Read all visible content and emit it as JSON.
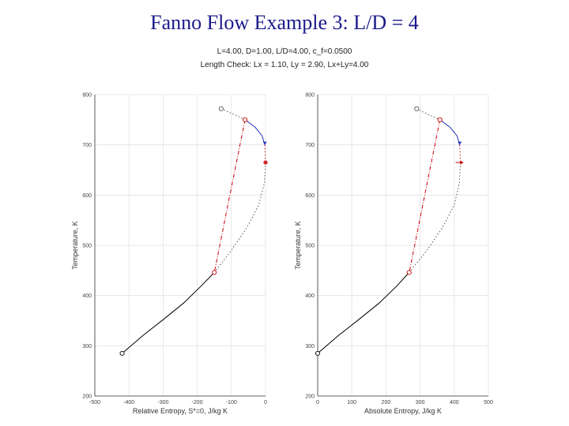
{
  "slide": {
    "title": "Fanno Flow Example 3: L/D = 4",
    "info_line1": "L=4.00, D=1.00, L/D=4.00, c_f=0.0500",
    "info_line2": "Length Check: Lx = 1.10, Ly = 2.90, Lx+Ly=4.00"
  },
  "chart_data": [
    {
      "type": "line",
      "xlabel": "Relative Entropy, S*=0, J/kg K",
      "ylabel": "Temperature, K",
      "xlim": [
        -500,
        0
      ],
      "ylim": [
        200,
        800
      ],
      "xticks": [
        "-500",
        "-400",
        "-300",
        "-200",
        "-100",
        "0"
      ],
      "yticks": [
        "200",
        "300",
        "400",
        "500",
        "600",
        "700",
        "800"
      ],
      "grid": true,
      "series": [
        {
          "style": "solid",
          "color": "#000000",
          "x": [
            -420,
            -360,
            -300,
            -240,
            -190,
            -150
          ],
          "y": [
            285,
            320,
            352,
            385,
            418,
            446
          ]
        },
        {
          "style": "dotted",
          "color": "#555555",
          "x": [
            -150,
            -100,
            -55,
            -20,
            -3,
            0
          ],
          "y": [
            446,
            490,
            535,
            580,
            625,
            665
          ]
        },
        {
          "style": "dotted",
          "color": "#555555",
          "x": [
            -130,
            -90,
            -60
          ],
          "y": [
            772,
            760,
            750
          ]
        },
        {
          "style": "dash-dot",
          "color": "#cc0000",
          "x": [
            -60,
            -105,
            -150
          ],
          "y": [
            750,
            598,
            446
          ]
        },
        {
          "style": "solid",
          "color": "#2233bb",
          "x": [
            -60,
            -30,
            -10,
            -2
          ],
          "y": [
            750,
            735,
            718,
            700
          ]
        },
        {
          "style": "dotted",
          "color": "#cc0000",
          "x": [
            -2,
            0
          ],
          "y": [
            700,
            665
          ]
        }
      ],
      "markers": [
        {
          "x": -420,
          "y": 285,
          "color": "#000000",
          "shape": "open-circle"
        },
        {
          "x": -130,
          "y": 772,
          "color": "#555555",
          "shape": "open-circle"
        },
        {
          "x": -60,
          "y": 750,
          "color": "#cc0000",
          "shape": "open-circle"
        },
        {
          "x": -150,
          "y": 446,
          "color": "#cc0000",
          "shape": "open-circle"
        },
        {
          "x": 0,
          "y": 665,
          "color": "#cc0000",
          "shape": "star"
        },
        {
          "x": -2,
          "y": 700,
          "color": "#2233bb",
          "shape": "arrow"
        }
      ]
    },
    {
      "type": "line",
      "xlabel": "Absolute Entropy, J/kg K",
      "ylabel": "Temperature, K",
      "xlim": [
        0,
        500
      ],
      "ylim": [
        200,
        800
      ],
      "xticks": [
        "0",
        "100",
        "200",
        "300",
        "400",
        "500"
      ],
      "yticks": [
        "200",
        "300",
        "400",
        "500",
        "600",
        "700",
        "800"
      ],
      "grid": true,
      "series": [
        {
          "style": "solid",
          "color": "#000000",
          "x": [
            0,
            60,
            120,
            180,
            230,
            268
          ],
          "y": [
            285,
            320,
            352,
            385,
            418,
            446
          ]
        },
        {
          "style": "dotted",
          "color": "#555555",
          "x": [
            268,
            320,
            365,
            400,
            415,
            418
          ],
          "y": [
            446,
            490,
            535,
            580,
            625,
            665
          ]
        },
        {
          "style": "dotted",
          "color": "#555555",
          "x": [
            290,
            325,
            358
          ],
          "y": [
            772,
            760,
            750
          ]
        },
        {
          "style": "dash-dot",
          "color": "#cc0000",
          "x": [
            358,
            313,
            268
          ],
          "y": [
            750,
            598,
            446
          ]
        },
        {
          "style": "solid",
          "color": "#2233bb",
          "x": [
            358,
            388,
            408,
            416
          ],
          "y": [
            750,
            735,
            718,
            700
          ]
        },
        {
          "style": "dotted",
          "color": "#cc0000",
          "x": [
            416,
            418
          ],
          "y": [
            700,
            665
          ]
        }
      ],
      "markers": [
        {
          "x": 0,
          "y": 285,
          "color": "#000000",
          "shape": "open-circle"
        },
        {
          "x": 290,
          "y": 772,
          "color": "#555555",
          "shape": "open-circle"
        },
        {
          "x": 358,
          "y": 750,
          "color": "#cc0000",
          "shape": "open-circle"
        },
        {
          "x": 268,
          "y": 446,
          "color": "#cc0000",
          "shape": "open-circle"
        },
        {
          "x": 418,
          "y": 665,
          "color": "#cc0000",
          "shape": "arrow-right"
        },
        {
          "x": 416,
          "y": 700,
          "color": "#2233bb",
          "shape": "arrow"
        }
      ]
    }
  ]
}
